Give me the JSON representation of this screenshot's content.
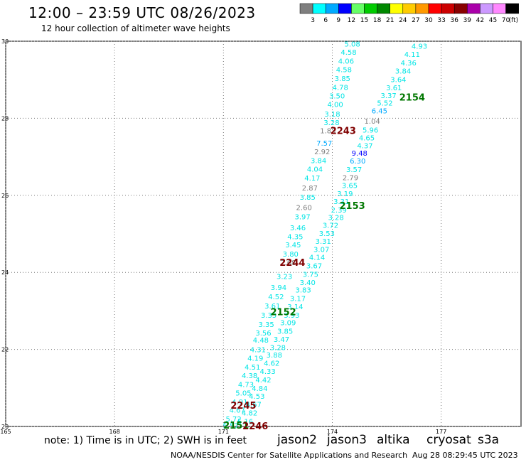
{
  "header": {
    "title": "12:00 – 23:59 UTC 08/26/2023",
    "subtitle": "12 hour collection of altimeter wave heights"
  },
  "legend": {
    "unit": "(ft)",
    "items": [
      {
        "label": "3",
        "color": "#7f7f7f"
      },
      {
        "label": "6",
        "color": "#00ffff"
      },
      {
        "label": "9",
        "color": "#00aaff"
      },
      {
        "label": "12",
        "color": "#0000ff"
      },
      {
        "label": "15",
        "color": "#66ff66"
      },
      {
        "label": "18",
        "color": "#00cc00"
      },
      {
        "label": "21",
        "color": "#008800"
      },
      {
        "label": "24",
        "color": "#ffff00"
      },
      {
        "label": "27",
        "color": "#ffcc00"
      },
      {
        "label": "30",
        "color": "#ff9900"
      },
      {
        "label": "33",
        "color": "#ff0000"
      },
      {
        "label": "36",
        "color": "#cc0000"
      },
      {
        "label": "39",
        "color": "#880000"
      },
      {
        "label": "42",
        "color": "#aa00aa"
      },
      {
        "label": "45",
        "color": "#cc99ff"
      },
      {
        "label": "70",
        "color": "#ff88ff"
      },
      {
        "label": "",
        "color": "#000000"
      }
    ]
  },
  "map": {
    "lat_ticks": [
      "30",
      "28",
      "26",
      "24",
      "22",
      "20"
    ],
    "lon_ticks": [
      "165",
      "168",
      "171",
      "174",
      "177"
    ],
    "lat_range": [
      20,
      30
    ],
    "lon_range": [
      165,
      179.2
    ]
  },
  "tracks": [
    {
      "name": "track-east",
      "points": [
        {
          "lon": 176.4,
          "lat": 29.88,
          "v": "4.93",
          "c": "#00e5e5"
        },
        {
          "lon": 176.2,
          "lat": 29.67,
          "v": "4.11",
          "c": "#00e5e5"
        },
        {
          "lon": 176.1,
          "lat": 29.45,
          "v": "4.36",
          "c": "#00e5e5"
        },
        {
          "lon": 175.95,
          "lat": 29.23,
          "v": "3.84",
          "c": "#00e5e5"
        },
        {
          "lon": 175.82,
          "lat": 29.01,
          "v": "3.64",
          "c": "#00e5e5"
        },
        {
          "lon": 175.7,
          "lat": 28.8,
          "v": "3.61",
          "c": "#00e5e5"
        },
        {
          "lon": 175.55,
          "lat": 28.6,
          "v": "3.37",
          "c": "#00e5e5"
        },
        {
          "lon": 175.45,
          "lat": 28.4,
          "v": "5.52",
          "c": "#00e5e5"
        },
        {
          "lon": 175.3,
          "lat": 28.2,
          "v": "6.45",
          "c": "#00aaff"
        },
        {
          "lon": 175.1,
          "lat": 27.93,
          "v": "1.04",
          "c": "#7f7f7f"
        },
        {
          "lon": 175.05,
          "lat": 27.7,
          "v": "5.96",
          "c": "#00e5e5"
        },
        {
          "lon": 174.95,
          "lat": 27.5,
          "v": "4.65",
          "c": "#00e5e5"
        },
        {
          "lon": 174.9,
          "lat": 27.3,
          "v": "4.37",
          "c": "#00e5e5"
        },
        {
          "lon": 174.75,
          "lat": 27.1,
          "v": "9.48",
          "c": "#0000ff"
        },
        {
          "lon": 174.7,
          "lat": 26.9,
          "v": "6.30",
          "c": "#00aaff"
        },
        {
          "lon": 174.6,
          "lat": 26.68,
          "v": "3.57",
          "c": "#00e5e5"
        },
        {
          "lon": 174.5,
          "lat": 26.47,
          "v": "2.79",
          "c": "#7f7f7f"
        },
        {
          "lon": 174.48,
          "lat": 26.26,
          "v": "3.65",
          "c": "#00e5e5"
        },
        {
          "lon": 174.35,
          "lat": 26.05,
          "v": "3.19",
          "c": "#00e5e5"
        },
        {
          "lon": 174.25,
          "lat": 25.85,
          "v": "3.31",
          "c": "#00e5e5"
        },
        {
          "lon": 174.18,
          "lat": 25.63,
          "v": "2.39",
          "c": "#00e5e5"
        },
        {
          "lon": 174.1,
          "lat": 25.43,
          "v": "3.28",
          "c": "#00e5e5"
        },
        {
          "lon": 173.95,
          "lat": 25.23,
          "v": "3.72",
          "c": "#00e5e5"
        },
        {
          "lon": 173.85,
          "lat": 25.02,
          "v": "3.53",
          "c": "#00e5e5"
        },
        {
          "lon": 173.75,
          "lat": 24.82,
          "v": "3.31",
          "c": "#00e5e5"
        },
        {
          "lon": 173.7,
          "lat": 24.6,
          "v": "3.07",
          "c": "#00e5e5"
        },
        {
          "lon": 173.58,
          "lat": 24.4,
          "v": "4.14",
          "c": "#00e5e5"
        },
        {
          "lon": 173.5,
          "lat": 24.18,
          "v": "3.67",
          "c": "#00e5e5"
        },
        {
          "lon": 173.4,
          "lat": 23.96,
          "v": "3.75",
          "c": "#00e5e5"
        },
        {
          "lon": 173.32,
          "lat": 23.75,
          "v": "3.40",
          "c": "#00e5e5"
        },
        {
          "lon": 173.2,
          "lat": 23.55,
          "v": "3.83",
          "c": "#00e5e5"
        },
        {
          "lon": 173.05,
          "lat": 23.33,
          "v": "3.17",
          "c": "#00e5e5"
        },
        {
          "lon": 172.98,
          "lat": 23.12,
          "v": "3.14",
          "c": "#00e5e5"
        },
        {
          "lon": 172.88,
          "lat": 22.9,
          "v": "3.93",
          "c": "#00e5e5"
        },
        {
          "lon": 172.78,
          "lat": 22.7,
          "v": "3.09",
          "c": "#00e5e5"
        },
        {
          "lon": 172.7,
          "lat": 22.48,
          "v": "3.85",
          "c": "#00e5e5"
        },
        {
          "lon": 172.6,
          "lat": 22.27,
          "v": "3.47",
          "c": "#00e5e5"
        },
        {
          "lon": 172.5,
          "lat": 22.06,
          "v": "3.28",
          "c": "#00e5e5"
        },
        {
          "lon": 172.4,
          "lat": 21.86,
          "v": "3.88",
          "c": "#00e5e5"
        },
        {
          "lon": 172.33,
          "lat": 21.65,
          "v": "4.62",
          "c": "#00e5e5"
        },
        {
          "lon": 172.22,
          "lat": 21.44,
          "v": "4.33",
          "c": "#00e5e5"
        },
        {
          "lon": 172.1,
          "lat": 21.22,
          "v": "4.42",
          "c": "#00e5e5"
        },
        {
          "lon": 172.0,
          "lat": 21.0,
          "v": "4.84",
          "c": "#00e5e5"
        },
        {
          "lon": 171.92,
          "lat": 20.79,
          "v": "4.53",
          "c": "#00e5e5"
        },
        {
          "lon": 171.83,
          "lat": 20.58,
          "v": "4.67",
          "c": "#00e5e5"
        },
        {
          "lon": 171.72,
          "lat": 20.36,
          "v": "4.82",
          "c": "#00e5e5"
        },
        {
          "lon": 171.6,
          "lat": 20.14,
          "v": "5.16",
          "c": "#00e5e5"
        }
      ]
    },
    {
      "name": "track-west",
      "points": [
        {
          "lon": 174.55,
          "lat": 29.94,
          "v": "5.08",
          "c": "#00e5e5"
        },
        {
          "lon": 174.45,
          "lat": 29.72,
          "v": "4.58",
          "c": "#00e5e5"
        },
        {
          "lon": 174.38,
          "lat": 29.49,
          "v": "4.06",
          "c": "#00e5e5"
        },
        {
          "lon": 174.32,
          "lat": 29.27,
          "v": "4.58",
          "c": "#00e5e5"
        },
        {
          "lon": 174.28,
          "lat": 29.04,
          "v": "3.85",
          "c": "#00e5e5"
        },
        {
          "lon": 174.22,
          "lat": 28.81,
          "v": "4.78",
          "c": "#00e5e5"
        },
        {
          "lon": 174.13,
          "lat": 28.59,
          "v": "3.50",
          "c": "#00e5e5"
        },
        {
          "lon": 174.08,
          "lat": 28.37,
          "v": "4.00",
          "c": "#00e5e5"
        },
        {
          "lon": 174.0,
          "lat": 28.12,
          "v": "3.18",
          "c": "#00e5e5"
        },
        {
          "lon": 173.98,
          "lat": 27.9,
          "v": "3.28",
          "c": "#00e5e5"
        },
        {
          "lon": 173.88,
          "lat": 27.68,
          "v": "1.83",
          "c": "#7f7f7f"
        },
        {
          "lon": 173.78,
          "lat": 27.36,
          "v": "7.57",
          "c": "#00aaff"
        },
        {
          "lon": 173.72,
          "lat": 27.14,
          "v": "2.92",
          "c": "#7f7f7f"
        },
        {
          "lon": 173.62,
          "lat": 26.91,
          "v": "3.84",
          "c": "#00e5e5"
        },
        {
          "lon": 173.52,
          "lat": 26.69,
          "v": "4.04",
          "c": "#00e5e5"
        },
        {
          "lon": 173.45,
          "lat": 26.46,
          "v": "4.17",
          "c": "#00e5e5"
        },
        {
          "lon": 173.38,
          "lat": 26.2,
          "v": "2.87",
          "c": "#7f7f7f"
        },
        {
          "lon": 173.32,
          "lat": 25.96,
          "v": "3.85",
          "c": "#00e5e5"
        },
        {
          "lon": 173.22,
          "lat": 25.69,
          "v": "2.60",
          "c": "#7f7f7f"
        },
        {
          "lon": 173.18,
          "lat": 25.45,
          "v": "3.97",
          "c": "#00e5e5"
        },
        {
          "lon": 173.05,
          "lat": 25.17,
          "v": "3.46",
          "c": "#00e5e5"
        },
        {
          "lon": 172.98,
          "lat": 24.94,
          "v": "4.35",
          "c": "#00e5e5"
        },
        {
          "lon": 172.92,
          "lat": 24.72,
          "v": "3.45",
          "c": "#00e5e5"
        },
        {
          "lon": 172.85,
          "lat": 24.48,
          "v": "3.80",
          "c": "#00e5e5"
        },
        {
          "lon": 172.78,
          "lat": 24.26,
          "v": "2.68",
          "c": "#7f7f7f"
        },
        {
          "lon": 172.68,
          "lat": 23.9,
          "v": "3.23",
          "c": "#00e5e5"
        },
        {
          "lon": 172.52,
          "lat": 23.62,
          "v": "3.94",
          "c": "#00e5e5"
        },
        {
          "lon": 172.45,
          "lat": 23.38,
          "v": "4.52",
          "c": "#00e5e5"
        },
        {
          "lon": 172.35,
          "lat": 23.14,
          "v": "3.61",
          "c": "#00e5e5"
        },
        {
          "lon": 172.25,
          "lat": 22.9,
          "v": "3.35",
          "c": "#00e5e5"
        },
        {
          "lon": 172.18,
          "lat": 22.66,
          "v": "3.35",
          "c": "#00e5e5"
        },
        {
          "lon": 172.1,
          "lat": 22.44,
          "v": "3.56",
          "c": "#00e5e5"
        },
        {
          "lon": 172.03,
          "lat": 22.25,
          "v": "4.48",
          "c": "#00e5e5"
        },
        {
          "lon": 171.95,
          "lat": 22.0,
          "v": "4.31",
          "c": "#00e5e5"
        },
        {
          "lon": 171.88,
          "lat": 21.78,
          "v": "4.19",
          "c": "#00e5e5"
        },
        {
          "lon": 171.8,
          "lat": 21.55,
          "v": "4.51",
          "c": "#00e5e5"
        },
        {
          "lon": 171.72,
          "lat": 21.33,
          "v": "4.38",
          "c": "#00e5e5"
        },
        {
          "lon": 171.62,
          "lat": 21.1,
          "v": "4.73",
          "c": "#00e5e5"
        },
        {
          "lon": 171.55,
          "lat": 20.88,
          "v": "5.05",
          "c": "#00e5e5"
        },
        {
          "lon": 171.45,
          "lat": 20.65,
          "v": "4.91",
          "c": "#00e5e5"
        },
        {
          "lon": 171.38,
          "lat": 20.43,
          "v": "4.67",
          "c": "#00e5e5"
        },
        {
          "lon": 171.28,
          "lat": 20.2,
          "v": "5.72",
          "c": "#00e5e5"
        },
        {
          "lon": 171.2,
          "lat": 20.03,
          "v": "5.57",
          "c": "#00e5e5"
        }
      ]
    }
  ],
  "time_labels": [
    {
      "lon": 176.2,
      "lat": 28.55,
      "text": "2154",
      "color": "#007700"
    },
    {
      "lon": 174.3,
      "lat": 27.68,
      "text": "2243",
      "color": "#800000"
    },
    {
      "lon": 174.55,
      "lat": 25.74,
      "text": "2153",
      "color": "#007700"
    },
    {
      "lon": 172.9,
      "lat": 24.26,
      "text": "2244",
      "color": "#800000"
    },
    {
      "lon": 172.65,
      "lat": 22.98,
      "text": "2152",
      "color": "#007700"
    },
    {
      "lon": 171.55,
      "lat": 20.55,
      "text": "2245",
      "color": "#800000"
    },
    {
      "lon": 171.35,
      "lat": 20.04,
      "text": "2151",
      "color": "#007700"
    },
    {
      "lon": 171.88,
      "lat": 20.02,
      "text": "2246",
      "color": "#800000"
    }
  ],
  "footer": {
    "note": "note: 1) Time is in UTC; 2) SWH is in feet",
    "satellites": [
      {
        "name": "jason2",
        "color": "#0000dd"
      },
      {
        "name": "jason3",
        "color": "#009900"
      },
      {
        "name": "altika",
        "color": "#ff8800"
      },
      {
        "name": "cryosat",
        "color": "#cc0000"
      },
      {
        "name": "s3a",
        "color": "#880000"
      }
    ],
    "credit": "NOAA/NESDIS Center for Satellite Applications and Research",
    "timestamp": "Aug 28 08:29:45 UTC 2023"
  }
}
